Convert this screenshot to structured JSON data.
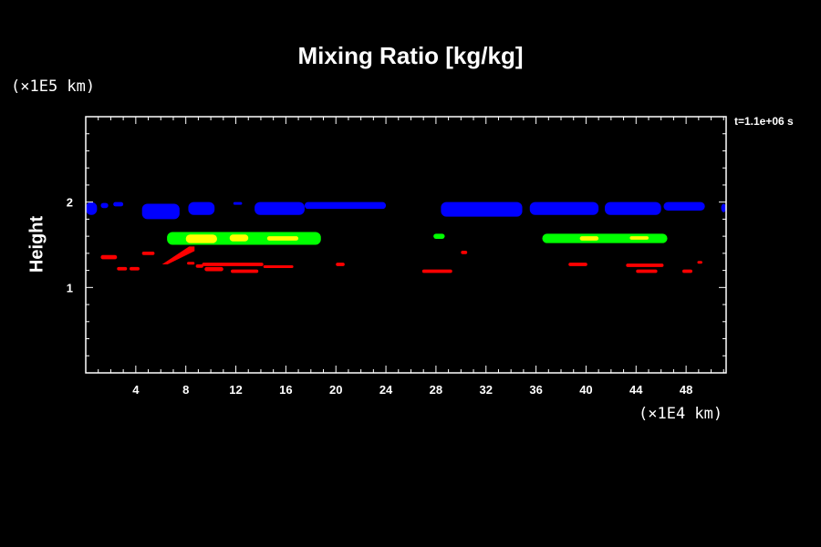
{
  "chart_data": {
    "type": "heatmap",
    "title": "Mixing Ratio [kg/kg]",
    "xlabel": "",
    "ylabel": "Height",
    "x_unit": "(×1E4 km)",
    "y_unit": "(×1E5 km)",
    "time_label": "t=1.1e+06 s",
    "xlim": [
      0,
      51.2
    ],
    "ylim": [
      0,
      3.0
    ],
    "x_ticks": [
      4,
      8,
      12,
      16,
      20,
      24,
      28,
      32,
      36,
      40,
      44,
      48
    ],
    "y_ticks": [
      1,
      2
    ],
    "colors": {
      "blue": "#0000ff",
      "green": "#00ff00",
      "yellow": "#ffff00",
      "red": "#ff0000",
      "axis": "#ffffff",
      "background": "#000000"
    },
    "regions": [
      {
        "color": "blue",
        "x": [
          0,
          0.9
        ],
        "y": [
          1.85,
          2.0
        ]
      },
      {
        "color": "blue",
        "x": [
          1.2,
          1.8
        ],
        "y": [
          1.93,
          1.99
        ]
      },
      {
        "color": "blue",
        "x": [
          2.2,
          3.0
        ],
        "y": [
          1.95,
          2.0
        ]
      },
      {
        "color": "blue",
        "x": [
          4.5,
          7.5
        ],
        "y": [
          1.8,
          1.98
        ]
      },
      {
        "color": "blue",
        "x": [
          8.2,
          10.3
        ],
        "y": [
          1.85,
          2.0
        ]
      },
      {
        "color": "blue",
        "x": [
          11.8,
          12.5
        ],
        "y": [
          1.97,
          2.0
        ]
      },
      {
        "color": "blue",
        "x": [
          13.5,
          17.5
        ],
        "y": [
          1.85,
          2.0
        ]
      },
      {
        "color": "blue",
        "x": [
          17.5,
          24.0
        ],
        "y": [
          1.92,
          2.0
        ]
      },
      {
        "color": "blue",
        "x": [
          28.4,
          34.9
        ],
        "y": [
          1.83,
          2.0
        ]
      },
      {
        "color": "blue",
        "x": [
          35.5,
          41.0
        ],
        "y": [
          1.85,
          2.0
        ]
      },
      {
        "color": "blue",
        "x": [
          41.5,
          46.0
        ],
        "y": [
          1.85,
          2.0
        ]
      },
      {
        "color": "blue",
        "x": [
          46.2,
          49.5
        ],
        "y": [
          1.9,
          2.0
        ]
      },
      {
        "color": "blue",
        "x": [
          50.8,
          51.2
        ],
        "y": [
          1.88,
          1.98
        ]
      },
      {
        "color": "green",
        "x": [
          6.5,
          18.8
        ],
        "y": [
          1.5,
          1.65
        ]
      },
      {
        "color": "green",
        "x": [
          27.8,
          28.7
        ],
        "y": [
          1.57,
          1.63
        ]
      },
      {
        "color": "green",
        "x": [
          36.5,
          46.5
        ],
        "y": [
          1.52,
          1.63
        ]
      },
      {
        "color": "yellow",
        "x": [
          8.0,
          10.5
        ],
        "y": [
          1.52,
          1.62
        ]
      },
      {
        "color": "yellow",
        "x": [
          11.5,
          13.0
        ],
        "y": [
          1.54,
          1.62
        ]
      },
      {
        "color": "yellow",
        "x": [
          14.5,
          17.0
        ],
        "y": [
          1.55,
          1.6
        ]
      },
      {
        "color": "yellow",
        "x": [
          39.5,
          41.0
        ],
        "y": [
          1.55,
          1.6
        ]
      },
      {
        "color": "yellow",
        "x": [
          43.5,
          45.0
        ],
        "y": [
          1.56,
          1.6
        ]
      },
      {
        "color": "red",
        "x": [
          1.2,
          2.5
        ],
        "y": [
          1.33,
          1.38
        ]
      },
      {
        "color": "red",
        "x": [
          2.5,
          3.3
        ],
        "y": [
          1.2,
          1.24
        ]
      },
      {
        "color": "red",
        "x": [
          3.5,
          4.3
        ],
        "y": [
          1.2,
          1.24
        ]
      },
      {
        "color": "red",
        "x": [
          4.5,
          5.5
        ],
        "y": [
          1.38,
          1.42
        ]
      },
      {
        "color": "red",
        "x": [
          6.1,
          8.7
        ],
        "y": [
          1.27,
          1.48
        ],
        "slant": true
      },
      {
        "color": "red",
        "x": [
          8.1,
          8.7
        ],
        "y": [
          1.27,
          1.3
        ]
      },
      {
        "color": "red",
        "x": [
          8.8,
          9.4
        ],
        "y": [
          1.23,
          1.27
        ]
      },
      {
        "color": "red",
        "x": [
          9.3,
          14.2
        ],
        "y": [
          1.25,
          1.29
        ]
      },
      {
        "color": "red",
        "x": [
          9.5,
          11.0
        ],
        "y": [
          1.19,
          1.24
        ]
      },
      {
        "color": "red",
        "x": [
          11.6,
          13.8
        ],
        "y": [
          1.17,
          1.21
        ]
      },
      {
        "color": "red",
        "x": [
          14.2,
          16.6
        ],
        "y": [
          1.23,
          1.26
        ]
      },
      {
        "color": "red",
        "x": [
          20.0,
          20.7
        ],
        "y": [
          1.25,
          1.29
        ]
      },
      {
        "color": "red",
        "x": [
          26.9,
          29.3
        ],
        "y": [
          1.17,
          1.21
        ]
      },
      {
        "color": "red",
        "x": [
          30.0,
          30.5
        ],
        "y": [
          1.39,
          1.43
        ]
      },
      {
        "color": "red",
        "x": [
          38.6,
          40.1
        ],
        "y": [
          1.25,
          1.29
        ]
      },
      {
        "color": "red",
        "x": [
          43.2,
          46.2
        ],
        "y": [
          1.24,
          1.28
        ]
      },
      {
        "color": "red",
        "x": [
          44.0,
          45.7
        ],
        "y": [
          1.17,
          1.21
        ]
      },
      {
        "color": "red",
        "x": [
          47.7,
          48.5
        ],
        "y": [
          1.17,
          1.21
        ]
      },
      {
        "color": "red",
        "x": [
          48.9,
          49.3
        ],
        "y": [
          1.28,
          1.31
        ]
      }
    ]
  }
}
